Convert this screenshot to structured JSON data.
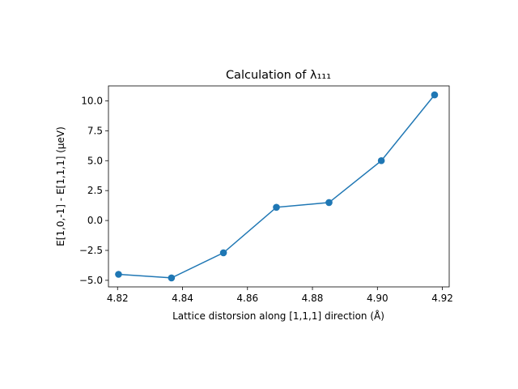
{
  "chart_data": {
    "type": "line",
    "title": "Calculation of λ₁₁₁",
    "xlabel": "Lattice distorsion along [1,1,1] direction (Å)",
    "ylabel": "E[1,0,-1] - E[1,1,1] (μeV)",
    "xlim": [
      4.8172,
      4.9221
    ],
    "ylim": [
      -5.55,
      11.25
    ],
    "xticks": [
      4.82,
      4.84,
      4.86,
      4.88,
      4.9,
      4.92
    ],
    "xtick_labels": [
      "4.82",
      "4.84",
      "4.86",
      "4.88",
      "4.90",
      "4.92"
    ],
    "yticks": [
      -5.0,
      -2.5,
      0.0,
      2.5,
      5.0,
      7.5,
      10.0
    ],
    "ytick_labels": [
      "−5.0",
      "−2.5",
      "0.0",
      "2.5",
      "5.0",
      "7.5",
      "10.0"
    ],
    "grid": false,
    "series": [
      {
        "color": "#1f77b4",
        "marker": "circle",
        "x": [
          4.8203,
          4.8366,
          4.8526,
          4.8689,
          4.8851,
          4.9012,
          4.9176
        ],
        "y": [
          -4.5,
          -4.8,
          -2.7,
          1.1,
          1.5,
          5.0,
          10.5
        ]
      }
    ]
  }
}
